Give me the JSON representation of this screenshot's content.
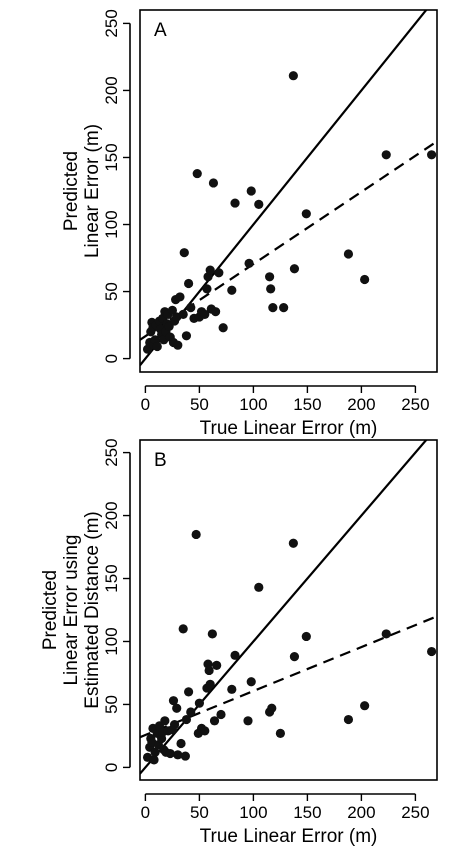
{
  "chart_data": [
    {
      "type": "scatter",
      "panel_label": "A",
      "xlabel": "True Linear Error (m)",
      "ylabel_lines": [
        "Predicted",
        "Linear Error (m)"
      ],
      "xlim": [
        -5,
        270
      ],
      "ylim": [
        -10,
        260
      ],
      "xticks": [
        0,
        50,
        100,
        150,
        200,
        250
      ],
      "yticks": [
        0,
        50,
        100,
        150,
        200,
        250
      ],
      "points": [
        [
          2,
          7
        ],
        [
          4,
          12
        ],
        [
          5,
          20
        ],
        [
          6,
          27
        ],
        [
          7,
          23
        ],
        [
          8,
          10
        ],
        [
          9,
          14
        ],
        [
          10,
          25
        ],
        [
          11,
          9
        ],
        [
          13,
          28
        ],
        [
          14,
          22
        ],
        [
          15,
          18
        ],
        [
          16,
          30
        ],
        [
          17,
          14
        ],
        [
          18,
          35
        ],
        [
          19,
          20
        ],
        [
          20,
          26
        ],
        [
          21,
          33
        ],
        [
          22,
          24
        ],
        [
          23,
          16
        ],
        [
          25,
          36
        ],
        [
          26,
          12
        ],
        [
          27,
          28
        ],
        [
          28,
          44
        ],
        [
          29,
          31
        ],
        [
          30,
          10
        ],
        [
          32,
          46
        ],
        [
          35,
          33
        ],
        [
          36,
          79
        ],
        [
          38,
          17
        ],
        [
          40,
          56
        ],
        [
          42,
          38
        ],
        [
          45,
          30
        ],
        [
          48,
          138
        ],
        [
          50,
          31
        ],
        [
          52,
          35
        ],
        [
          55,
          33
        ],
        [
          57,
          52
        ],
        [
          58,
          61
        ],
        [
          60,
          66
        ],
        [
          61,
          37
        ],
        [
          63,
          131
        ],
        [
          65,
          35
        ],
        [
          68,
          64
        ],
        [
          72,
          23
        ],
        [
          80,
          51
        ],
        [
          83,
          116
        ],
        [
          96,
          71
        ],
        [
          98,
          125
        ],
        [
          105,
          115
        ],
        [
          115,
          61
        ],
        [
          116,
          52
        ],
        [
          118,
          38
        ],
        [
          128,
          38
        ],
        [
          137,
          211
        ],
        [
          138,
          67
        ],
        [
          149,
          108
        ],
        [
          188,
          78
        ],
        [
          203,
          59
        ],
        [
          223,
          152
        ],
        [
          265,
          152
        ]
      ],
      "lines": [
        {
          "style": "solid",
          "x": [
            -5,
            270
          ],
          "y": [
            -5,
            270
          ]
        },
        {
          "style": "dashed",
          "x": [
            -5,
            270
          ],
          "y": [
            14,
            162
          ]
        }
      ]
    },
    {
      "type": "scatter",
      "panel_label": "B",
      "xlabel": "True Linear Error (m)",
      "ylabel_lines": [
        "Predicted",
        "Linear Error using",
        "Estimated Distance (m)"
      ],
      "xlim": [
        -5,
        270
      ],
      "ylim": [
        -10,
        260
      ],
      "xticks": [
        0,
        50,
        100,
        150,
        200,
        250
      ],
      "yticks": [
        0,
        50,
        100,
        150,
        200,
        250
      ],
      "points": [
        [
          2,
          8
        ],
        [
          4,
          16
        ],
        [
          5,
          23
        ],
        [
          6,
          20
        ],
        [
          7,
          31
        ],
        [
          8,
          6
        ],
        [
          9,
          12
        ],
        [
          11,
          27
        ],
        [
          12,
          18
        ],
        [
          13,
          33
        ],
        [
          15,
          23
        ],
        [
          16,
          28
        ],
        [
          17,
          14
        ],
        [
          18,
          37
        ],
        [
          19,
          12
        ],
        [
          21,
          29
        ],
        [
          23,
          11
        ],
        [
          25,
          30
        ],
        [
          26,
          53
        ],
        [
          27,
          34
        ],
        [
          29,
          47
        ],
        [
          30,
          10
        ],
        [
          33,
          19
        ],
        [
          35,
          110
        ],
        [
          37,
          9
        ],
        [
          38,
          38
        ],
        [
          40,
          60
        ],
        [
          42,
          44
        ],
        [
          47,
          185
        ],
        [
          49,
          27
        ],
        [
          50,
          51
        ],
        [
          52,
          31
        ],
        [
          55,
          29
        ],
        [
          57,
          63
        ],
        [
          58,
          82
        ],
        [
          59,
          77
        ],
        [
          60,
          66
        ],
        [
          62,
          106
        ],
        [
          64,
          37
        ],
        [
          66,
          81
        ],
        [
          70,
          42
        ],
        [
          80,
          62
        ],
        [
          83,
          89
        ],
        [
          95,
          37
        ],
        [
          98,
          68
        ],
        [
          105,
          143
        ],
        [
          115,
          44
        ],
        [
          117,
          47
        ],
        [
          125,
          27
        ],
        [
          137,
          178
        ],
        [
          138,
          88
        ],
        [
          149,
          104
        ],
        [
          188,
          38
        ],
        [
          203,
          49
        ],
        [
          223,
          106
        ],
        [
          265,
          92
        ]
      ],
      "lines": [
        {
          "style": "solid",
          "x": [
            -5,
            270
          ],
          "y": [
            -5,
            270
          ]
        },
        {
          "style": "dashed",
          "x": [
            -5,
            270
          ],
          "y": [
            24,
            120
          ]
        }
      ]
    }
  ]
}
